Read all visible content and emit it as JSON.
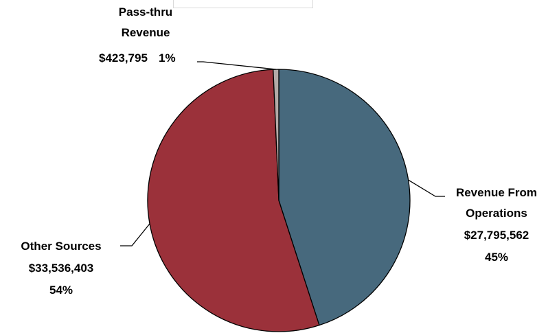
{
  "chart_data": {
    "type": "pie",
    "title": "",
    "slices": [
      {
        "label_lines": [
          "Revenue From",
          "Operations"
        ],
        "value": 27795562,
        "value_text": "$27,795,562",
        "percent_text": "45%",
        "color": "#47697d"
      },
      {
        "label_lines": [
          "Other Sources"
        ],
        "value": 33536403,
        "value_text": "$33,536,403",
        "percent_text": "54%",
        "color": "#9b313a"
      },
      {
        "label_lines": [
          "Pass-thru",
          "Revenue"
        ],
        "value": 423795,
        "value_text": "$423,795",
        "percent_text": "1%",
        "color": "#b3aaa7"
      }
    ]
  }
}
